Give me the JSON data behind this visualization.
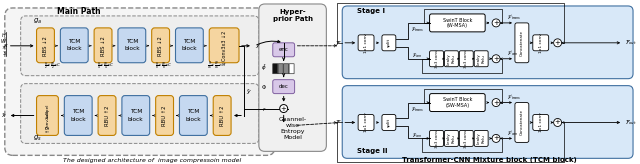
{
  "fig_width": 6.4,
  "fig_height": 1.64,
  "dpi": 100,
  "bg_color": "#ffffff",
  "main_path_title": "Main Path",
  "caption_left": "The designed architecture of  image compressoin model",
  "caption_right": "Transformer-CNN Mixture block (TCM block)",
  "hyper_prior_label": "Hyper-\nprior Path",
  "channel_wise_label": "Channel-\nwise\nEntropy\nModel",
  "stage1_label": "Stage I",
  "stage2_label": "Stage II",
  "swinT_w_msa": "SwinT Block\n(W-MSA)",
  "swinT_sw_msa": "SwinT Block\n(SW-MSA)"
}
